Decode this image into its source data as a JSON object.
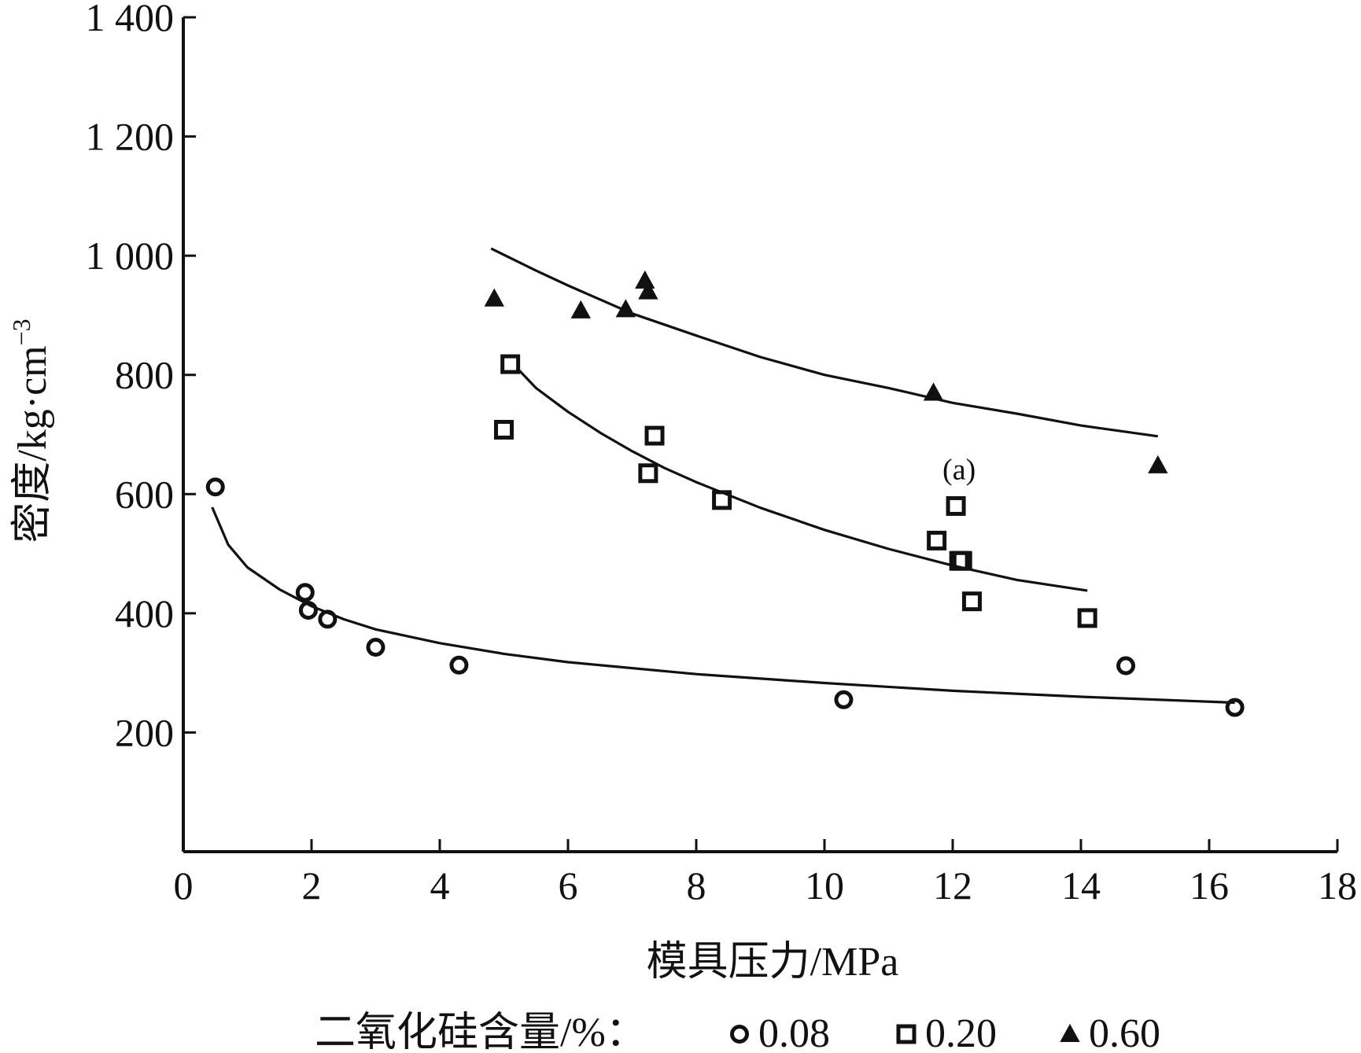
{
  "chart_data": {
    "type": "scatter",
    "xlabel": "模具压力/MPa",
    "ylabel_text": "密度/kg·cm",
    "ylabel_superscript": "−3",
    "xlim": [
      0,
      18
    ],
    "ylim": [
      0,
      1400
    ],
    "x_ticks": [
      0,
      2,
      4,
      6,
      8,
      10,
      12,
      14,
      16,
      18
    ],
    "y_ticks": [
      200,
      400,
      600,
      800,
      1000,
      1200,
      1400
    ],
    "y_tick_labels": [
      "200",
      "400",
      "600",
      "800",
      "1 000",
      "1 200",
      "1 400"
    ],
    "grid": false,
    "legend_title": "二氧化硅含量/%：",
    "legend_position": "bottom",
    "annotation": "(a)",
    "annotation_at": [
      12.1,
      625
    ],
    "series": [
      {
        "name": "0.08",
        "marker": "circle",
        "points": [
          [
            0.5,
            612
          ],
          [
            1.9,
            435
          ],
          [
            1.95,
            405
          ],
          [
            2.25,
            390
          ],
          [
            3.0,
            343
          ],
          [
            4.3,
            313
          ],
          [
            10.3,
            255
          ],
          [
            14.7,
            312
          ],
          [
            16.4,
            242
          ]
        ],
        "fit": [
          [
            0.45,
            578
          ],
          [
            0.7,
            515
          ],
          [
            1.0,
            477
          ],
          [
            1.5,
            440
          ],
          [
            2.0,
            412
          ],
          [
            2.5,
            390
          ],
          [
            3.0,
            373
          ],
          [
            4.0,
            350
          ],
          [
            5.0,
            332
          ],
          [
            6.0,
            318
          ],
          [
            8.0,
            298
          ],
          [
            10.0,
            283
          ],
          [
            12.0,
            270
          ],
          [
            14.0,
            260
          ],
          [
            16.4,
            250
          ]
        ]
      },
      {
        "name": "0.20",
        "marker": "square",
        "points": [
          [
            5.0,
            708
          ],
          [
            5.1,
            818
          ],
          [
            7.25,
            635
          ],
          [
            7.35,
            698
          ],
          [
            8.4,
            590
          ],
          [
            11.75,
            522
          ],
          [
            12.05,
            580
          ],
          [
            12.1,
            488
          ],
          [
            12.15,
            488
          ],
          [
            12.3,
            420
          ],
          [
            14.1,
            392
          ]
        ],
        "fit": [
          [
            5.2,
            812
          ],
          [
            5.5,
            778
          ],
          [
            6.0,
            738
          ],
          [
            6.5,
            703
          ],
          [
            7.0,
            672
          ],
          [
            7.5,
            644
          ],
          [
            8.0,
            620
          ],
          [
            9.0,
            577
          ],
          [
            10.0,
            540
          ],
          [
            11.0,
            508
          ],
          [
            12.0,
            480
          ],
          [
            13.0,
            456
          ],
          [
            14.1,
            438
          ]
        ]
      },
      {
        "name": "0.60",
        "marker": "triangle",
        "points": [
          [
            4.85,
            928
          ],
          [
            6.2,
            908
          ],
          [
            6.9,
            910
          ],
          [
            7.2,
            958
          ],
          [
            7.25,
            940
          ],
          [
            11.7,
            770
          ],
          [
            15.2,
            648
          ]
        ],
        "fit": [
          [
            4.8,
            1012
          ],
          [
            5.5,
            975
          ],
          [
            6.0,
            950
          ],
          [
            7.0,
            903
          ],
          [
            8.0,
            866
          ],
          [
            9.0,
            830
          ],
          [
            10.0,
            800
          ],
          [
            11.0,
            778
          ],
          [
            12.0,
            753
          ],
          [
            13.0,
            735
          ],
          [
            14.0,
            715
          ],
          [
            15.2,
            697
          ]
        ]
      }
    ]
  }
}
